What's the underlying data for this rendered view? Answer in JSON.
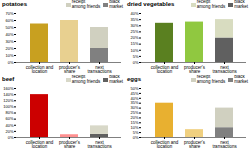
{
  "chart_data": [
    {
      "type": "bar",
      "title": "potatoes",
      "categories": [
        "collection and\nlocation",
        "producer's\nshare",
        "next\ntransactions"
      ],
      "values": [
        0.55,
        0.6,
        null
      ],
      "colors": [
        "#C8A020",
        "#E8D090",
        null
      ],
      "series": [
        {
          "name": "black\nmarket",
          "color": "#808080",
          "values": [
            null,
            null,
            0.2
          ]
        },
        {
          "name": "receipt\namong friends",
          "color": "#D0D0C0",
          "values": [
            null,
            null,
            0.3
          ]
        }
      ],
      "stacked": true,
      "legend": "upper right",
      "ylim": [
        0,
        0.7
      ],
      "yticks": [
        {
          "value": 0,
          "label": "0%"
        },
        {
          "value": 0.1,
          "label": "10%"
        },
        {
          "value": 0.2,
          "label": "20%"
        },
        {
          "value": 0.3,
          "label": "30%"
        },
        {
          "value": 0.4,
          "label": "40%"
        },
        {
          "value": 0.5,
          "label": "50%"
        },
        {
          "value": 0.6,
          "label": "60%"
        },
        {
          "value": 0.7,
          "label": "70%"
        }
      ]
    },
    {
      "type": "bar",
      "title": "dried vegetables",
      "categories": [
        "collection and\nlocation",
        "producer's\nshare",
        "next\ntransactions"
      ],
      "values": [
        0.32,
        0.33,
        null
      ],
      "colors": [
        "#5A8020",
        "#90C840",
        null
      ],
      "series": [
        {
          "name": "black\nmarket",
          "color": "#606060",
          "values": [
            null,
            null,
            0.2
          ]
        },
        {
          "name": "receipt\namong friends",
          "color": "#D8DCC0",
          "values": [
            null,
            null,
            0.15
          ]
        }
      ],
      "stacked": true,
      "legend": "upper right",
      "ylim": [
        0,
        0.4
      ],
      "yticks": [
        {
          "value": 0,
          "label": "0%"
        },
        {
          "value": 0.05,
          "label": "5%"
        },
        {
          "value": 0.1,
          "label": "10%"
        },
        {
          "value": 0.15,
          "label": "15%"
        },
        {
          "value": 0.2,
          "label": "20%"
        },
        {
          "value": 0.25,
          "label": "25%"
        },
        {
          "value": 0.3,
          "label": "30%"
        },
        {
          "value": 0.35,
          "label": "35%"
        },
        {
          "value": 0.4,
          "label": "40%"
        }
      ]
    },
    {
      "type": "bar",
      "title": "beef",
      "categories": [
        "collection and\nlocation",
        "producer's\nshare",
        "next\ntransactions"
      ],
      "values": [
        1.4,
        0.09,
        null
      ],
      "colors": [
        "#CC0000",
        "#FF9090",
        null
      ],
      "series": [
        {
          "name": "black\nmarket",
          "color": "#606060",
          "values": [
            null,
            null,
            0.1
          ]
        },
        {
          "name": "receipt\namong friends",
          "color": "#D8D8C8",
          "values": [
            null,
            null,
            0.28
          ]
        }
      ],
      "stacked": true,
      "legend": "upper right",
      "ylim": [
        0,
        1.6
      ],
      "yticks": [
        {
          "value": 0,
          "label": "0%"
        },
        {
          "value": 0.2,
          "label": "20%"
        },
        {
          "value": 0.4,
          "label": "40%"
        },
        {
          "value": 0.6,
          "label": "60%"
        },
        {
          "value": 0.8,
          "label": "80%"
        },
        {
          "value": 1,
          "label": "100%"
        },
        {
          "value": 1.2,
          "label": "120%"
        },
        {
          "value": 1.4,
          "label": "140%"
        },
        {
          "value": 1.6,
          "label": "160%"
        }
      ]
    },
    {
      "type": "bar",
      "title": "eggs",
      "categories": [
        "collection and\nlocation",
        "producer's\nshare",
        "next\ntransactions"
      ],
      "values": [
        0.35,
        0.08,
        null
      ],
      "colors": [
        "#E8B030",
        "#F0D080",
        null
      ],
      "series": [
        {
          "name": "black\nmarket",
          "color": "#808080",
          "values": [
            null,
            null,
            0.1
          ]
        },
        {
          "name": "receipt\namong friends",
          "color": "#D0D0C0",
          "values": [
            null,
            null,
            0.2
          ]
        }
      ],
      "stacked": true,
      "legend": "upper right",
      "ylim": [
        0,
        0.5
      ],
      "yticks": [
        {
          "value": 0,
          "label": "0%"
        },
        {
          "value": 0.05,
          "label": "5%"
        },
        {
          "value": 0.1,
          "label": "10%"
        },
        {
          "value": 0.15,
          "label": "15%"
        },
        {
          "value": 0.2,
          "label": "20%"
        },
        {
          "value": 0.25,
          "label": "25%"
        },
        {
          "value": 0.3,
          "label": "30%"
        },
        {
          "value": 0.35,
          "label": "35%"
        },
        {
          "value": 0.4,
          "label": "40%"
        },
        {
          "value": 0.45,
          "label": "45%"
        },
        {
          "value": 0.5,
          "label": "50%"
        }
      ]
    }
  ]
}
